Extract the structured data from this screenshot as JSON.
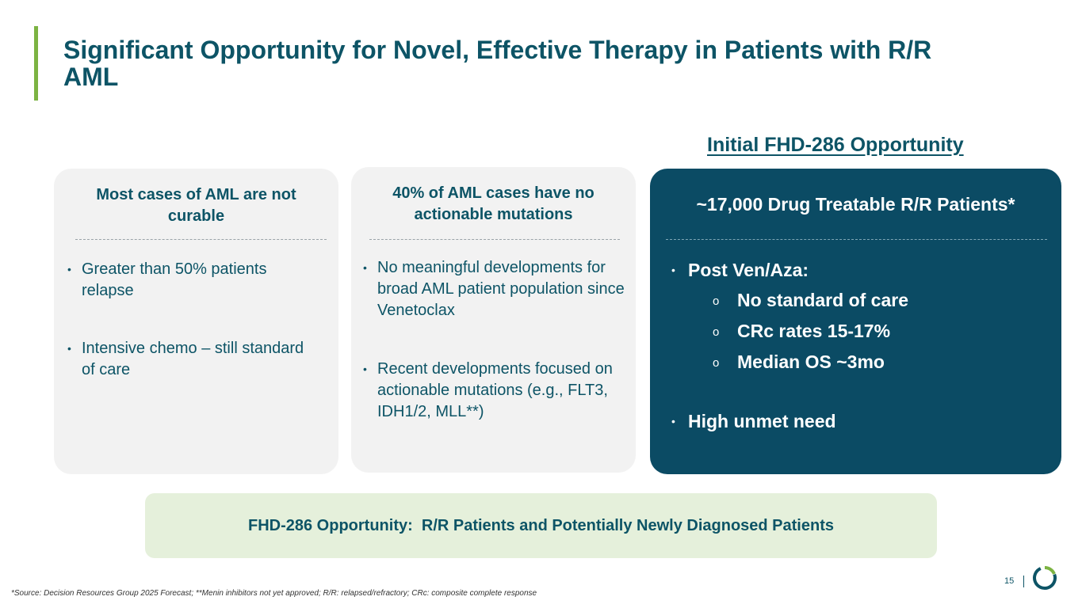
{
  "slide": {
    "title": "Significant Opportunity for Novel, Effective Therapy in Patients with R/R AML",
    "opportunity_heading": "Initial FHD-286 Opportunity",
    "card1": {
      "heading": "Most cases of AML are not curable",
      "bullets": [
        "Greater than 50% patients relapse",
        "Intensive chemo – still standard of care"
      ]
    },
    "card2": {
      "heading": "40% of AML cases have no actionable mutations",
      "bullets": [
        "No meaningful developments for broad AML patient population since Venetoclax",
        "Recent developments focused on actionable mutations (e.g., FLT3, IDH1/2, MLL**)"
      ]
    },
    "card3": {
      "heading": "~17,000 Drug Treatable R/R Patients*",
      "bullet1": "Post Ven/Aza:",
      "sub_bullets": [
        "No standard of care",
        "CRc rates 15-17%",
        "Median OS ~3mo"
      ],
      "bullet2": "High unmet need"
    },
    "banner": "FHD-286 Opportunity:  R/R Patients and Potentially Newly Diagnosed Patients",
    "footnote": "*Source: Decision Resources Group 2025 Forecast; **Menin inhibitors not yet approved; R/R: relapsed/refractory; CRc: composite complete response",
    "page_number": "15",
    "bullet_glyph": "•",
    "sub_bullet_glyph": "o",
    "colors": {
      "title": "#0d5466",
      "accent_green": "#7cb342",
      "dark_card": "#0b4b64",
      "light_card": "#f2f2f2",
      "banner": "#e5f0db"
    },
    "logo_icon": "ring-logo-icon"
  }
}
